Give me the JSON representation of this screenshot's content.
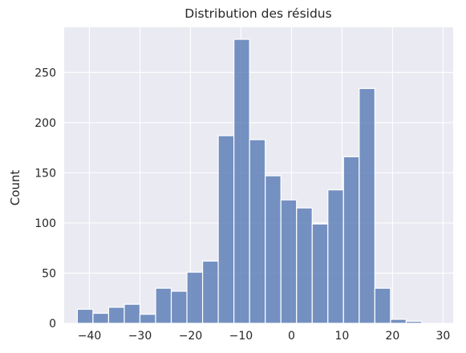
{
  "chart_data": {
    "type": "bar",
    "title": "Distribution des résidus",
    "xlabel": "",
    "ylabel": "Count",
    "xlim": [
      -45,
      32
    ],
    "ylim": [
      0,
      295
    ],
    "x_ticks": [
      -40,
      -30,
      -20,
      -10,
      0,
      10,
      20,
      30
    ],
    "x_tick_labels": [
      "−40",
      "−30",
      "−20",
      "−10",
      "0",
      "10",
      "20",
      "30"
    ],
    "y_ticks": [
      0,
      50,
      100,
      150,
      200,
      250
    ],
    "y_tick_labels": [
      "0",
      "50",
      "100",
      "150",
      "200",
      "250"
    ],
    "grid": true,
    "background": "#eaeaf2",
    "bar_color": "#4c72b0",
    "bins": [
      {
        "x0": -42.4,
        "x1": -39.3,
        "count": 14
      },
      {
        "x0": -39.3,
        "x1": -36.2,
        "count": 10
      },
      {
        "x0": -36.2,
        "x1": -33.1,
        "count": 16
      },
      {
        "x0": -33.1,
        "x1": -30.0,
        "count": 19
      },
      {
        "x0": -30.0,
        "x1": -26.9,
        "count": 9
      },
      {
        "x0": -26.9,
        "x1": -23.8,
        "count": 35
      },
      {
        "x0": -23.8,
        "x1": -20.7,
        "count": 32
      },
      {
        "x0": -20.7,
        "x1": -17.6,
        "count": 51
      },
      {
        "x0": -17.6,
        "x1": -14.5,
        "count": 62
      },
      {
        "x0": -14.5,
        "x1": -11.4,
        "count": 187
      },
      {
        "x0": -11.4,
        "x1": -8.3,
        "count": 283
      },
      {
        "x0": -8.3,
        "x1": -5.2,
        "count": 183
      },
      {
        "x0": -5.2,
        "x1": -2.1,
        "count": 147
      },
      {
        "x0": -2.1,
        "x1": 1.0,
        "count": 123
      },
      {
        "x0": 1.0,
        "x1": 4.1,
        "count": 115
      },
      {
        "x0": 4.1,
        "x1": 7.2,
        "count": 99
      },
      {
        "x0": 7.2,
        "x1": 10.3,
        "count": 133
      },
      {
        "x0": 10.3,
        "x1": 13.4,
        "count": 166
      },
      {
        "x0": 13.4,
        "x1": 16.5,
        "count": 234
      },
      {
        "x0": 16.5,
        "x1": 19.6,
        "count": 35
      },
      {
        "x0": 19.6,
        "x1": 22.7,
        "count": 4
      },
      {
        "x0": 22.7,
        "x1": 25.8,
        "count": 2
      }
    ]
  }
}
